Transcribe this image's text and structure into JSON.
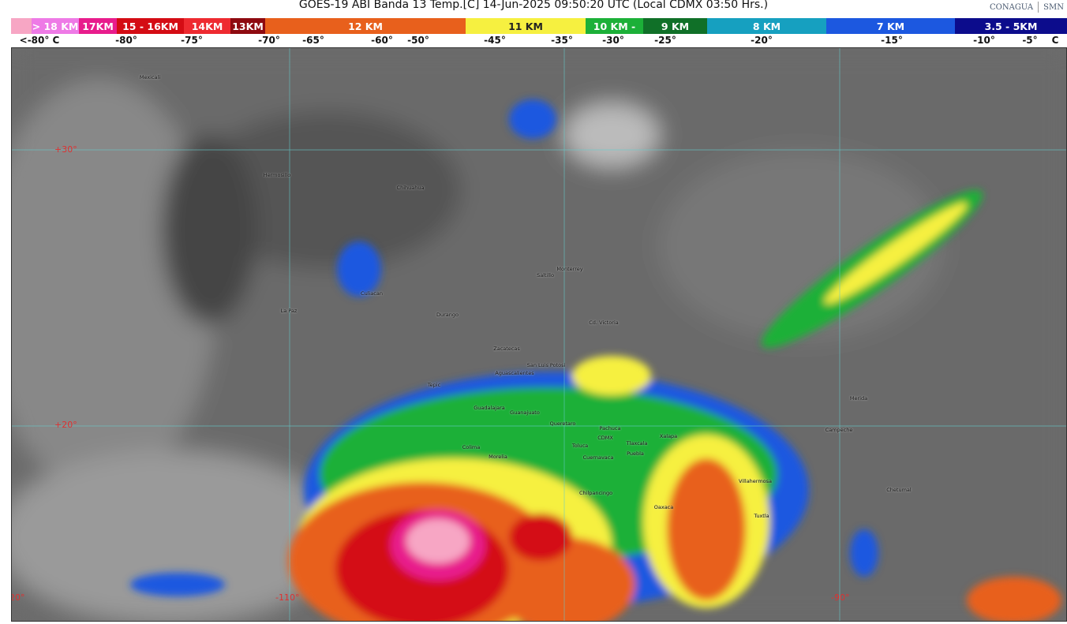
{
  "header": {
    "title": "GOES-19 ABI Banda 13 Temp.[C] 14-Jun-2025 09:50:20 UTC (Local CDMX  03:50 Hrs.)",
    "logos": [
      "CONAGUA",
      "SMN"
    ]
  },
  "scale": {
    "segments": [
      {
        "label": "",
        "color": "#f7a6c4"
      },
      {
        "label": "> 18 KM",
        "color": "#ee7ae6"
      },
      {
        "label": "17KM",
        "color": "#e81c8c"
      },
      {
        "label": "15 - 16KM",
        "color": "#d40c14"
      },
      {
        "label": "14KM",
        "color": "#ee2a30"
      },
      {
        "label": "13KM",
        "color": "#8e0a10"
      },
      {
        "label": "12 KM",
        "color": "#e8601c"
      },
      {
        "label": "11 KM",
        "color": "#f6f040"
      },
      {
        "label": "10 KM -",
        "color": "#1cb038"
      },
      {
        "label": "9 KM",
        "color": "#107028"
      },
      {
        "label": "8 KM",
        "color": "#16a0c0"
      },
      {
        "label": "7 KM",
        "color": "#1c58e0"
      },
      {
        "label": "3.5 - 5KM",
        "color": "#0c0c8c"
      }
    ],
    "temps": [
      "<-80° C",
      "-80°",
      "-75°",
      "-70°",
      "-65°",
      "-60°",
      "-50°",
      "-45°",
      "-35°",
      "-30°",
      "-25°",
      "-20°",
      "-15°",
      "-10°",
      "-5°",
      "C"
    ]
  },
  "map": {
    "cities": [
      "Mexicali",
      "Hermosillo",
      "Chihuahua",
      "Culiacan",
      "La Paz",
      "Durango",
      "Saltillo",
      "Monterrey",
      "Cd. Victoria",
      "Zacatecas",
      "San Luis Potosi",
      "Aguascalientes",
      "Tepic",
      "Guadalajara",
      "Guanajuato",
      "Queretaro",
      "Pachuca",
      "Morelia",
      "Colima",
      "Toluca",
      "CDMX",
      "Tlaxcala",
      "Xalapa",
      "Puebla",
      "Cuernavaca",
      "Chilpancingo",
      "Oaxaca",
      "Villahermosa",
      "Tuxtla",
      "Campeche",
      "Merida",
      "Chetumal"
    ],
    "grid_labels": [
      "+30°",
      "+20°",
      "-120°",
      "-110°",
      "-90°"
    ]
  }
}
